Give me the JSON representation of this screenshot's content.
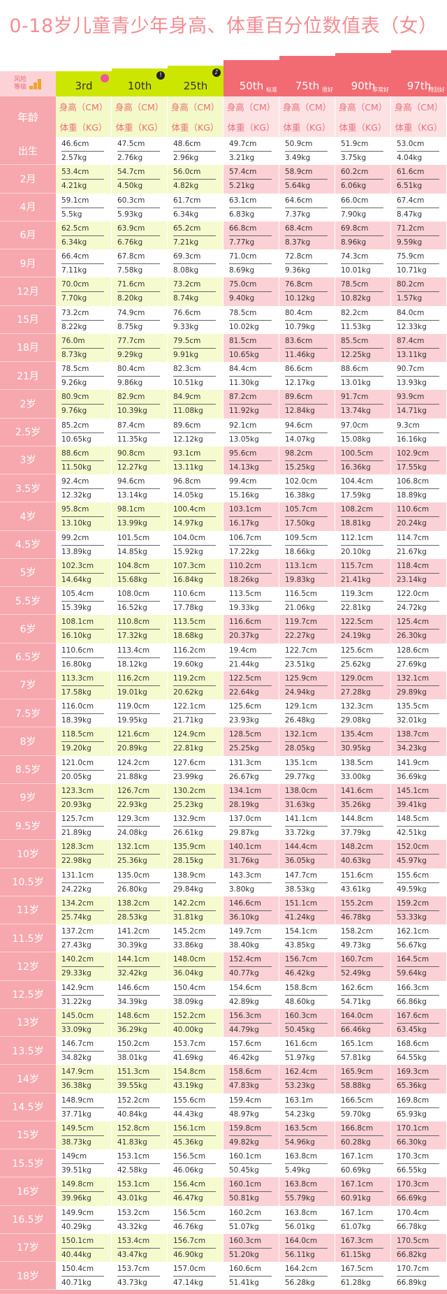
{
  "title": "0-18岁儿童青少年身高、体重百分位数值表（女）",
  "header": {
    "corner_label_line1": "风险",
    "corner_label_line2": "等级",
    "age_label": "年龄",
    "height_label": "身高（CM）",
    "weight_label": "体重（KG）",
    "percentiles": [
      {
        "label": "3rd",
        "bg": "#cde600",
        "tag": "",
        "deco": "pink"
      },
      {
        "label": "10th",
        "bg": "#cde600",
        "tag": "",
        "deco": "!"
      },
      {
        "label": "25th",
        "bg": "#cde600",
        "tag": "",
        "deco": "bell"
      },
      {
        "label": "50th",
        "bg": "#f26b73",
        "tag": "标准",
        "deco": ""
      },
      {
        "label": "75th",
        "bg": "#f26b73",
        "tag": "很好",
        "deco": ""
      },
      {
        "label": "90th",
        "bg": "#f26b73",
        "tag": "非常好",
        "deco": ""
      },
      {
        "label": "97th",
        "bg": "#f26b73",
        "tag": "特别好",
        "deco": ""
      }
    ]
  },
  "colors": {
    "pink_light": "#fde8ea",
    "pink_mid": "#fbd1d5",
    "green_light": "#f6fbcf",
    "age_bg": "#f6a8ae",
    "title": "#f38d93"
  },
  "rows": [
    {
      "age": "出生",
      "h": [
        "46.6cm",
        "47.5cm",
        "48.6cm",
        "49.7cm",
        "50.9cm",
        "51.9cm",
        "53.0cm"
      ],
      "w": [
        "2.57kg",
        "2.76kg",
        "2.96kg",
        "3.21kg",
        "3.49kg",
        "3.75kg",
        "4.04kg"
      ]
    },
    {
      "age": "2月",
      "h": [
        "53.4cm",
        "54.7cm",
        "56.0cm",
        "57.4cm",
        "58.9cm",
        "60.2cm",
        "61.6cm"
      ],
      "w": [
        "4.21kg",
        "4.50kg",
        "4.82kg",
        "5.21kg",
        "5.64kg",
        "6.06kg",
        "6.51kg"
      ]
    },
    {
      "age": "4月",
      "h": [
        "59.1cm",
        "60.3cm",
        "61.7cm",
        "63.1cm",
        "64.6cm",
        "66.0cm",
        "67.4cm"
      ],
      "w": [
        "5.5kg",
        "5.93kg",
        "6.34kg",
        "6.83kg",
        "7.37kg",
        "7.90kg",
        "8.47kg"
      ]
    },
    {
      "age": "6月",
      "h": [
        "62.5cm",
        "63.9cm",
        "65.2cm",
        "66.8cm",
        "68.4cm",
        "69.8cm",
        "71.2cm"
      ],
      "w": [
        "6.34kg",
        "6.76kg",
        "7.21kg",
        "7.77kg",
        "8.37kg",
        "8.96kg",
        "9.59kg"
      ]
    },
    {
      "age": "9月",
      "h": [
        "66.4cm",
        "67.8cm",
        "69.3cm",
        "71.0cm",
        "72.8cm",
        "74.3cm",
        "75.9cm"
      ],
      "w": [
        "7.11kg",
        "7.58kg",
        "8.08kg",
        "8.69kg",
        "9.36kg",
        "10.01kg",
        "10.71kg"
      ]
    },
    {
      "age": "12月",
      "h": [
        "70.0cm",
        "71.6cm",
        "73.2cm",
        "75.0cm",
        "76.8cm",
        "78.5cm",
        "80.2cm"
      ],
      "w": [
        "7.70kg",
        "8.20kg",
        "8.74kg",
        "9.40kg",
        "10.12kg",
        "10.82kg",
        "1.57kg"
      ]
    },
    {
      "age": "15月",
      "h": [
        "73.2cm",
        "74.9cm",
        "76.6cm",
        "78.5cm",
        "80.4cm",
        "82.2cm",
        "84.0cm"
      ],
      "w": [
        "8.22kg",
        "8.75kg",
        "9.33kg",
        "10.02kg",
        "10.79kg",
        "11.53kg",
        "12.33kg"
      ]
    },
    {
      "age": "18月",
      "h": [
        "76.0m",
        "77.7cm",
        "79.5cm",
        "81.5cm",
        "83.6cm",
        "85.5cm",
        "87.4cm"
      ],
      "w": [
        "8.73kg",
        "9.29kg",
        "9.91kg",
        "10.65kg",
        "11.46kg",
        "12.25kg",
        "13.11kg"
      ]
    },
    {
      "age": "21月",
      "h": [
        "78.5cm",
        "80.4cm",
        "82.3cm",
        "84.4cm",
        "86.6cm",
        "88.6cm",
        "90.7cm"
      ],
      "w": [
        "9.26kg",
        "9.86kg",
        "10.51kg",
        "11.30kg",
        "12.17kg",
        "13.01kg",
        "13.93kg"
      ]
    },
    {
      "age": "2岁",
      "h": [
        "80.9cm",
        "82.9cm",
        "84.9cm",
        "87.2cm",
        "89.6cm",
        "91.7cm",
        "93.9cm"
      ],
      "w": [
        "9.76kg",
        "10.39kg",
        "11.08kg",
        "11.92kg",
        "12.84kg",
        "13.74kg",
        "14.71kg"
      ]
    },
    {
      "age": "2.5岁",
      "h": [
        "85.2cm",
        "87.4cm",
        "89.6cm",
        "92.1cm",
        "94.6cm",
        "97.0cm",
        "9.3cm"
      ],
      "w": [
        "10.65kg",
        "11.35kg",
        "12.12kg",
        "13.05kg",
        "14.07kg",
        "15.08kg",
        "16.16kg"
      ]
    },
    {
      "age": "3岁",
      "h": [
        "88.6cm",
        "90.8cm",
        "93.1cm",
        "95.6cm",
        "98.2cm",
        "100.5cm",
        "102.9cm"
      ],
      "w": [
        "11.50kg",
        "12.27kg",
        "13.11kg",
        "14.13kg",
        "15.25kg",
        "16.36kg",
        "17.55kg"
      ]
    },
    {
      "age": "3.5岁",
      "h": [
        "92.4cm",
        "94.6cm",
        "96.8cm",
        "99.4cm",
        "102.0cm",
        "104.4cm",
        "106.8cm"
      ],
      "w": [
        "12.32kg",
        "13.14kg",
        "14.05kg",
        "15.16kg",
        "16.38kg",
        "17.59kg",
        "18.89kg"
      ]
    },
    {
      "age": "4岁",
      "h": [
        "95.8cm",
        "98.1cm",
        "100.4cm",
        "103.1cm",
        "105.7cm",
        "108.2cm",
        "110.6cm"
      ],
      "w": [
        "13.10kg",
        "13.99kg",
        "14.97kg",
        "16.17kg",
        "17.50kg",
        "18.81kg",
        "20.24kg"
      ]
    },
    {
      "age": "4.5岁",
      "h": [
        "99.2cm",
        "101.5cm",
        "104.0cm",
        "106.7cm",
        "109.5cm",
        "112.1cm",
        "114.7cm"
      ],
      "w": [
        "13.89kg",
        "14.85kg",
        "15.92kg",
        "17.22kg",
        "18.66kg",
        "20.10kg",
        "21.67kg"
      ]
    },
    {
      "age": "5岁",
      "h": [
        "102.3cm",
        "104.8cm",
        "107.3cm",
        "110.2cm",
        "113.1cm",
        "115.7cm",
        "118.4cm"
      ],
      "w": [
        "14.64kg",
        "15.68kg",
        "16.84kg",
        "18.26kg",
        "19.83kg",
        "21.41kg",
        "23.14kg"
      ]
    },
    {
      "age": "5.5岁",
      "h": [
        "105.4cm",
        "108.0cm",
        "110.6cm",
        "113.5cm",
        "116.5cm",
        "119.3cm",
        "122.0cm"
      ],
      "w": [
        "15.39kg",
        "16.52kg",
        "17.78kg",
        "19.33kg",
        "21.06kg",
        "22.81kg",
        "24.72kg"
      ]
    },
    {
      "age": "6岁",
      "h": [
        "108.1cm",
        "110.8cm",
        "113.5cm",
        "116.6cm",
        "119.7cm",
        "122.5cm",
        "125.4cm"
      ],
      "w": [
        "16.10kg",
        "17.32kg",
        "18.68kg",
        "20.37kg",
        "22.27kg",
        "24.19kg",
        "26.30kg"
      ]
    },
    {
      "age": "6.5岁",
      "h": [
        "110.6cm",
        "113.4cm",
        "116.2cm",
        "19.4cm",
        "122.7cm",
        "125.6cm",
        "128.6cm"
      ],
      "w": [
        "16.80kg",
        "18.12kg",
        "19.60kg",
        "21.44kg",
        "23.51kg",
        "25.62kg",
        "27.69kg"
      ]
    },
    {
      "age": "7岁",
      "h": [
        "113.3cm",
        "116.2cm",
        "119.2cm",
        "122.5cm",
        "125.9cm",
        "129.0cm",
        "132.1cm"
      ],
      "w": [
        "17.58kg",
        "19.01kg",
        "20.62kg",
        "22.64kg",
        "24.94kg",
        "27.28kg",
        "29.89kg"
      ]
    },
    {
      "age": "7.5岁",
      "h": [
        "116.0cm",
        "119.0cm",
        "122.1cm",
        "125.6cm",
        "129.1cm",
        "132.3cm",
        "135.5cm"
      ],
      "w": [
        "18.39kg",
        "19.95kg",
        "21.71kg",
        "23.93kg",
        "26.48kg",
        "29.08kg",
        "32.01kg"
      ]
    },
    {
      "age": "8岁",
      "h": [
        "118.5cm",
        "121.6cm",
        "124.9cm",
        "128.5cm",
        "132.1cm",
        "135.4cm",
        "138.7cm"
      ],
      "w": [
        "19.20kg",
        "20.89kg",
        "22.81kg",
        "25.25kg",
        "28.05kg",
        "30.95kg",
        "34.23kg"
      ]
    },
    {
      "age": "8.5岁",
      "h": [
        "121.0cm",
        "124.2cm",
        "127.6cm",
        "131.3cm",
        "135.1cm",
        "138.5cm",
        "141.9cm"
      ],
      "w": [
        "20.05kg",
        "21.88kg",
        "23.99kg",
        "26.67kg",
        "29.77kg",
        "33.00kg",
        "36.69kg"
      ]
    },
    {
      "age": "9岁",
      "h": [
        "123.3cm",
        "126.7cm",
        "130.2cm",
        "134.1cm",
        "138.0cm",
        "141.6cm",
        "145.1cm"
      ],
      "w": [
        "20.93kg",
        "22.93kg",
        "25.23kg",
        "28.19kg",
        "31.63kg",
        "35.26kg",
        "39.41kg"
      ]
    },
    {
      "age": "9.5岁",
      "h": [
        "125.7cm",
        "129.3cm",
        "132.9cm",
        "137.0cm",
        "141.1cm",
        "144.8cm",
        "148.5cm"
      ],
      "w": [
        "21.89kg",
        "24.08kg",
        "26.61kg",
        "29.87kg",
        "33.72kg",
        "37.79kg",
        "42.51kg"
      ]
    },
    {
      "age": "10岁",
      "h": [
        "128.3cm",
        "132.1cm",
        "135.9cm",
        "140.1cm",
        "144.4cm",
        "148.2cm",
        "152.0cm"
      ],
      "w": [
        "22.98kg",
        "25.36kg",
        "28.15kg",
        "31.76kg",
        "36.05kg",
        "40.63kg",
        "45.97kg"
      ]
    },
    {
      "age": "10.5岁",
      "h": [
        "131.1cm",
        "135.0cm",
        "138.9cm",
        "143.3cm",
        "147.7cm",
        "151.6cm",
        "155.6cm"
      ],
      "w": [
        "24.22kg",
        "26.80kg",
        "29.84kg",
        "3.80kg",
        "38.53kg",
        "43.61kg",
        "49.59kg"
      ]
    },
    {
      "age": "11岁",
      "h": [
        "134.2cm",
        "138.2cm",
        "142.2cm",
        "146.6cm",
        "151.1cm",
        "155.2cm",
        "159.2cm"
      ],
      "w": [
        "25.74kg",
        "28.53kg",
        "31.81kg",
        "36.10kg",
        "41.24kg",
        "46.78kg",
        "53.33kg"
      ]
    },
    {
      "age": "11.5岁",
      "h": [
        "137.2cm",
        "141.2cm",
        "145.2cm",
        "149.7cm",
        "154.1cm",
        "158.2cm",
        "162.1cm"
      ],
      "w": [
        "27.43kg",
        "30.39kg",
        "33.86kg",
        "38.40kg",
        "43.85kg",
        "49.73kg",
        "56.67kg"
      ]
    },
    {
      "age": "12岁",
      "h": [
        "140.2cm",
        "144.1cm",
        "148.0cm",
        "152.4cm",
        "156.7cm",
        "160.7cm",
        "164.5cm"
      ],
      "w": [
        "29.33kg",
        "32.42kg",
        "36.04kg",
        "40.77kg",
        "46.42kg",
        "52.49kg",
        "59.64kg"
      ]
    },
    {
      "age": "12.5岁",
      "h": [
        "142.9cm",
        "146.6cm",
        "150.4cm",
        "154.6cm",
        "158.8cm",
        "162.6cm",
        "166.3cm"
      ],
      "w": [
        "31.22kg",
        "34.39kg",
        "38.09kg",
        "42.89kg",
        "48.60kg",
        "54.71kg",
        "66.86kg"
      ]
    },
    {
      "age": "13岁",
      "h": [
        "145.0cm",
        "148.6cm",
        "152.2cm",
        "156.3cm",
        "160.3cm",
        "164.0cm",
        "167.6cm"
      ],
      "w": [
        "33.09kg",
        "36.29kg",
        "40.00kg",
        "44.79kg",
        "50.45kg",
        "66.46kg",
        "63.45kg"
      ]
    },
    {
      "age": "13.5岁",
      "h": [
        "146.7cm",
        "150.2cm",
        "153.7cm",
        "157.6cm",
        "161.6cm",
        "165.1cm",
        "168.6cm"
      ],
      "w": [
        "34.82kg",
        "38.01kg",
        "41.69kg",
        "46.42kg",
        "51.97kg",
        "57.81kg",
        "64.55kg"
      ]
    },
    {
      "age": "14岁",
      "h": [
        "147.9cm",
        "151.3cm",
        "154.8cm",
        "158.6cm",
        "162.4cm",
        "165.9cm",
        "169.3cm"
      ],
      "w": [
        "36.38kg",
        "39.55kg",
        "43.19kg",
        "47.83kg",
        "53.23kg",
        "58.88kg",
        "65.36kg"
      ]
    },
    {
      "age": "14.5岁",
      "h": [
        "148.9cm",
        "152.2cm",
        "155.6cm",
        "159.4cm",
        "163.1m",
        "166.5cm",
        "169.8cm"
      ],
      "w": [
        "37.71kg",
        "40.84kg",
        "44.43kg",
        "48.97kg",
        "54.23kg",
        "59.70kg",
        "65.93kg"
      ]
    },
    {
      "age": "15岁",
      "h": [
        "149.5cm",
        "152.8cm",
        "156.1cm",
        "159.8cm",
        "163.5cm",
        "166.8cm",
        "170.1cm"
      ],
      "w": [
        "38.73kg",
        "41.83kg",
        "45.36kg",
        "49.82kg",
        "54.96kg",
        "60.28kg",
        "66.30kg"
      ]
    },
    {
      "age": "15.5岁",
      "h": [
        "149cm",
        "153.1cm",
        "156.5cm",
        "160.1cm",
        "163.8cm",
        "167.1cm",
        "170.3cm"
      ],
      "w": [
        "39.51kg",
        "42.58kg",
        "46.06kg",
        "50.45kg",
        "5.49kg",
        "60.69kg",
        "66.55kg"
      ]
    },
    {
      "age": "16岁",
      "h": [
        "149.8cm",
        "153.1cm",
        "156.4cm",
        "160.1cm",
        "163.8cm",
        "167.1cm",
        "170.3cm"
      ],
      "w": [
        "39.96kg",
        "43.01kg",
        "46.47kg",
        "50.81kg",
        "55.79kg",
        "60.91kg",
        "66.69kg"
      ]
    },
    {
      "age": "16.5岁",
      "h": [
        "149.9cm",
        "153.2cm",
        "156.5cm",
        "160.2cm",
        "163.8cm",
        "167.1cm",
        "170.4cm"
      ],
      "w": [
        "40.29kg",
        "43.32kg",
        "46.76kg",
        "51.07kg",
        "56.01kg",
        "61.07kg",
        "66.78kg"
      ]
    },
    {
      "age": "17岁",
      "h": [
        "150.1cm",
        "153.4cm",
        "156.7cm",
        "160.3cm",
        "164.0cm",
        "167.3cm",
        "170.5cm"
      ],
      "w": [
        "40.44kg",
        "43.47kg",
        "46.90kg",
        "51.20kg",
        "56.11kg",
        "61.15kg",
        "66.82kg"
      ]
    },
    {
      "age": "18岁",
      "h": [
        "150.4cm",
        "153.7cm",
        "157.0cm",
        "160.6cm",
        "164.2cm",
        "167.5cm",
        "170.7cm"
      ],
      "w": [
        "40.71kg",
        "43.73kg",
        "47.14kg",
        "51.41kg",
        "56.28kg",
        "61.28kg",
        "66.89kg"
      ]
    }
  ]
}
